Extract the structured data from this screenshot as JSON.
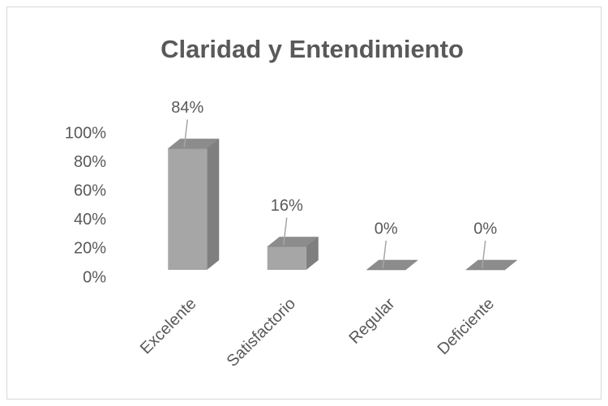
{
  "chart_data": {
    "type": "bar3d",
    "title": "Claridad y Entendimiento",
    "categories": [
      "Excelente",
      "Satisfactorio",
      "Regular",
      "Deficiente"
    ],
    "values": [
      84,
      16,
      0,
      0
    ],
    "value_labels": [
      "84%",
      "16%",
      "0%",
      "0%"
    ],
    "color": "#a6a6a6",
    "ylim": [
      0,
      100
    ],
    "yticks": [
      {
        "value": 0,
        "label": "0%"
      },
      {
        "value": 20,
        "label": "20%"
      },
      {
        "value": 40,
        "label": "40%"
      },
      {
        "value": 60,
        "label": "60%"
      },
      {
        "value": 80,
        "label": "80%"
      },
      {
        "value": 100,
        "label": "100%"
      }
    ],
    "grid": false
  }
}
